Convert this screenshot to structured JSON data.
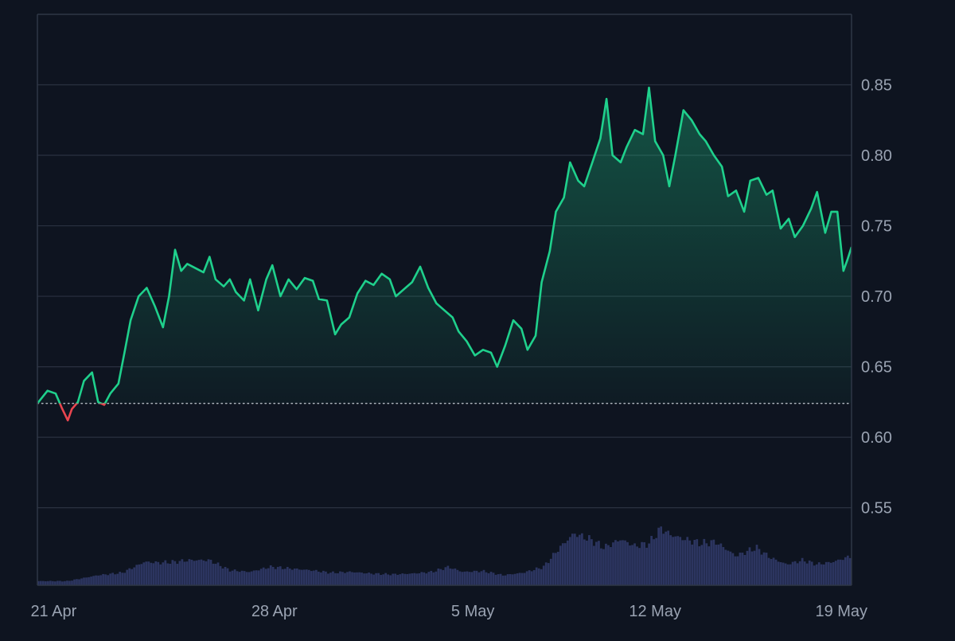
{
  "colors": {
    "background": "#0e1420",
    "grid": "#2a3140",
    "frame": "#2f3646",
    "tick_text": "#9aa3b2",
    "up_line": "#1fd08c",
    "down_line": "#e8454f",
    "baseline": "#c9cfd8",
    "volume": "#2c3560"
  },
  "chart_data": {
    "type": "area",
    "series": [
      {
        "values": [
          [
            0.0,
            0.624
          ],
          [
            0.5,
            0.633
          ],
          [
            0.9,
            0.631
          ],
          [
            1.2,
            0.621
          ],
          [
            1.5,
            0.612
          ],
          [
            1.7,
            0.62
          ],
          [
            2.0,
            0.625
          ],
          [
            2.3,
            0.64
          ],
          [
            2.7,
            0.646
          ],
          [
            3.0,
            0.625
          ],
          [
            3.3,
            0.623
          ],
          [
            3.6,
            0.631
          ],
          [
            4.0,
            0.638
          ],
          [
            4.3,
            0.66
          ],
          [
            4.6,
            0.683
          ],
          [
            5.0,
            0.7
          ],
          [
            5.4,
            0.706
          ],
          [
            5.8,
            0.693
          ],
          [
            6.2,
            0.678
          ],
          [
            6.5,
            0.7
          ],
          [
            6.8,
            0.733
          ],
          [
            7.1,
            0.718
          ],
          [
            7.4,
            0.723
          ],
          [
            7.8,
            0.72
          ],
          [
            8.2,
            0.717
          ],
          [
            8.5,
            0.728
          ],
          [
            8.8,
            0.712
          ],
          [
            9.2,
            0.707
          ],
          [
            9.5,
            0.712
          ],
          [
            9.8,
            0.703
          ],
          [
            10.2,
            0.697
          ],
          [
            10.5,
            0.712
          ],
          [
            10.9,
            0.69
          ],
          [
            11.3,
            0.712
          ],
          [
            11.6,
            0.722
          ],
          [
            12.0,
            0.7
          ],
          [
            12.4,
            0.712
          ],
          [
            12.8,
            0.705
          ],
          [
            13.2,
            0.713
          ],
          [
            13.6,
            0.711
          ],
          [
            13.9,
            0.698
          ],
          [
            14.3,
            0.697
          ],
          [
            14.7,
            0.673
          ],
          [
            15.0,
            0.68
          ],
          [
            15.4,
            0.685
          ],
          [
            15.8,
            0.702
          ],
          [
            16.2,
            0.711
          ],
          [
            16.6,
            0.708
          ],
          [
            17.0,
            0.716
          ],
          [
            17.4,
            0.712
          ],
          [
            17.7,
            0.7
          ],
          [
            18.1,
            0.705
          ],
          [
            18.5,
            0.71
          ],
          [
            18.9,
            0.721
          ],
          [
            19.3,
            0.706
          ],
          [
            19.7,
            0.695
          ],
          [
            20.1,
            0.69
          ],
          [
            20.5,
            0.685
          ],
          [
            20.8,
            0.675
          ],
          [
            21.2,
            0.668
          ],
          [
            21.6,
            0.658
          ],
          [
            22.0,
            0.662
          ],
          [
            22.4,
            0.66
          ],
          [
            22.7,
            0.65
          ],
          [
            23.1,
            0.665
          ],
          [
            23.5,
            0.683
          ],
          [
            23.9,
            0.677
          ],
          [
            24.2,
            0.662
          ],
          [
            24.6,
            0.672
          ],
          [
            24.9,
            0.71
          ],
          [
            25.3,
            0.732
          ],
          [
            25.6,
            0.76
          ],
          [
            26.0,
            0.77
          ],
          [
            26.3,
            0.795
          ],
          [
            26.7,
            0.782
          ],
          [
            27.0,
            0.778
          ],
          [
            27.4,
            0.795
          ],
          [
            27.8,
            0.812
          ],
          [
            28.1,
            0.84
          ],
          [
            28.4,
            0.8
          ],
          [
            28.8,
            0.795
          ],
          [
            29.1,
            0.806
          ],
          [
            29.5,
            0.818
          ],
          [
            29.9,
            0.815
          ],
          [
            30.2,
            0.848
          ],
          [
            30.5,
            0.81
          ],
          [
            30.9,
            0.8
          ],
          [
            31.2,
            0.778
          ],
          [
            31.5,
            0.8
          ],
          [
            31.9,
            0.832
          ],
          [
            32.3,
            0.825
          ],
          [
            32.7,
            0.815
          ],
          [
            33.0,
            0.81
          ],
          [
            33.4,
            0.8
          ],
          [
            33.8,
            0.792
          ],
          [
            34.1,
            0.771
          ],
          [
            34.5,
            0.775
          ],
          [
            34.9,
            0.76
          ],
          [
            35.2,
            0.782
          ],
          [
            35.6,
            0.784
          ],
          [
            36.0,
            0.772
          ],
          [
            36.3,
            0.775
          ],
          [
            36.7,
            0.748
          ],
          [
            37.1,
            0.755
          ],
          [
            37.4,
            0.742
          ],
          [
            37.8,
            0.75
          ],
          [
            38.2,
            0.762
          ],
          [
            38.5,
            0.774
          ],
          [
            38.9,
            0.745
          ],
          [
            39.2,
            0.76
          ],
          [
            39.5,
            0.76
          ],
          [
            39.8,
            0.718
          ],
          [
            40.0,
            0.726
          ],
          [
            40.2,
            0.735
          ]
        ]
      }
    ],
    "volume": [
      [
        0.0,
        0.05
      ],
      [
        1.5,
        0.05
      ],
      [
        3.0,
        0.12
      ],
      [
        4.2,
        0.15
      ],
      [
        5.3,
        0.28
      ],
      [
        6.0,
        0.27
      ],
      [
        6.8,
        0.28
      ],
      [
        7.5,
        0.3
      ],
      [
        8.5,
        0.3
      ],
      [
        9.5,
        0.18
      ],
      [
        10.5,
        0.16
      ],
      [
        11.5,
        0.22
      ],
      [
        12.5,
        0.2
      ],
      [
        13.5,
        0.18
      ],
      [
        14.5,
        0.15
      ],
      [
        15.5,
        0.16
      ],
      [
        16.5,
        0.14
      ],
      [
        17.5,
        0.13
      ],
      [
        18.5,
        0.14
      ],
      [
        19.5,
        0.16
      ],
      [
        20.3,
        0.22
      ],
      [
        21.0,
        0.16
      ],
      [
        22.0,
        0.17
      ],
      [
        23.0,
        0.12
      ],
      [
        24.0,
        0.15
      ],
      [
        25.0,
        0.22
      ],
      [
        25.8,
        0.45
      ],
      [
        26.5,
        0.62
      ],
      [
        27.3,
        0.55
      ],
      [
        28.0,
        0.45
      ],
      [
        28.8,
        0.55
      ],
      [
        29.5,
        0.47
      ],
      [
        30.2,
        0.5
      ],
      [
        30.8,
        0.68
      ],
      [
        31.3,
        0.6
      ],
      [
        32.0,
        0.55
      ],
      [
        32.8,
        0.5
      ],
      [
        33.5,
        0.52
      ],
      [
        34.5,
        0.35
      ],
      [
        35.5,
        0.45
      ],
      [
        36.2,
        0.33
      ],
      [
        37.0,
        0.25
      ],
      [
        37.8,
        0.3
      ],
      [
        38.5,
        0.25
      ],
      [
        39.3,
        0.28
      ],
      [
        40.2,
        0.35
      ]
    ],
    "baseline": 0.624,
    "x_range": [
      0,
      40.2
    ],
    "ylim": [
      0.495,
      0.9
    ],
    "y_ticks": [
      "0.85",
      "0.80",
      "0.75",
      "0.70",
      "0.65",
      "0.60",
      "0.55"
    ],
    "x_ticks": [
      {
        "x": 0.8,
        "label": "21 Apr"
      },
      {
        "x": 11.7,
        "label": "28 Apr"
      },
      {
        "x": 21.5,
        "label": "5 May"
      },
      {
        "x": 30.5,
        "label": "12 May"
      },
      {
        "x": 39.7,
        "label": "19 May"
      }
    ],
    "grid": true
  }
}
